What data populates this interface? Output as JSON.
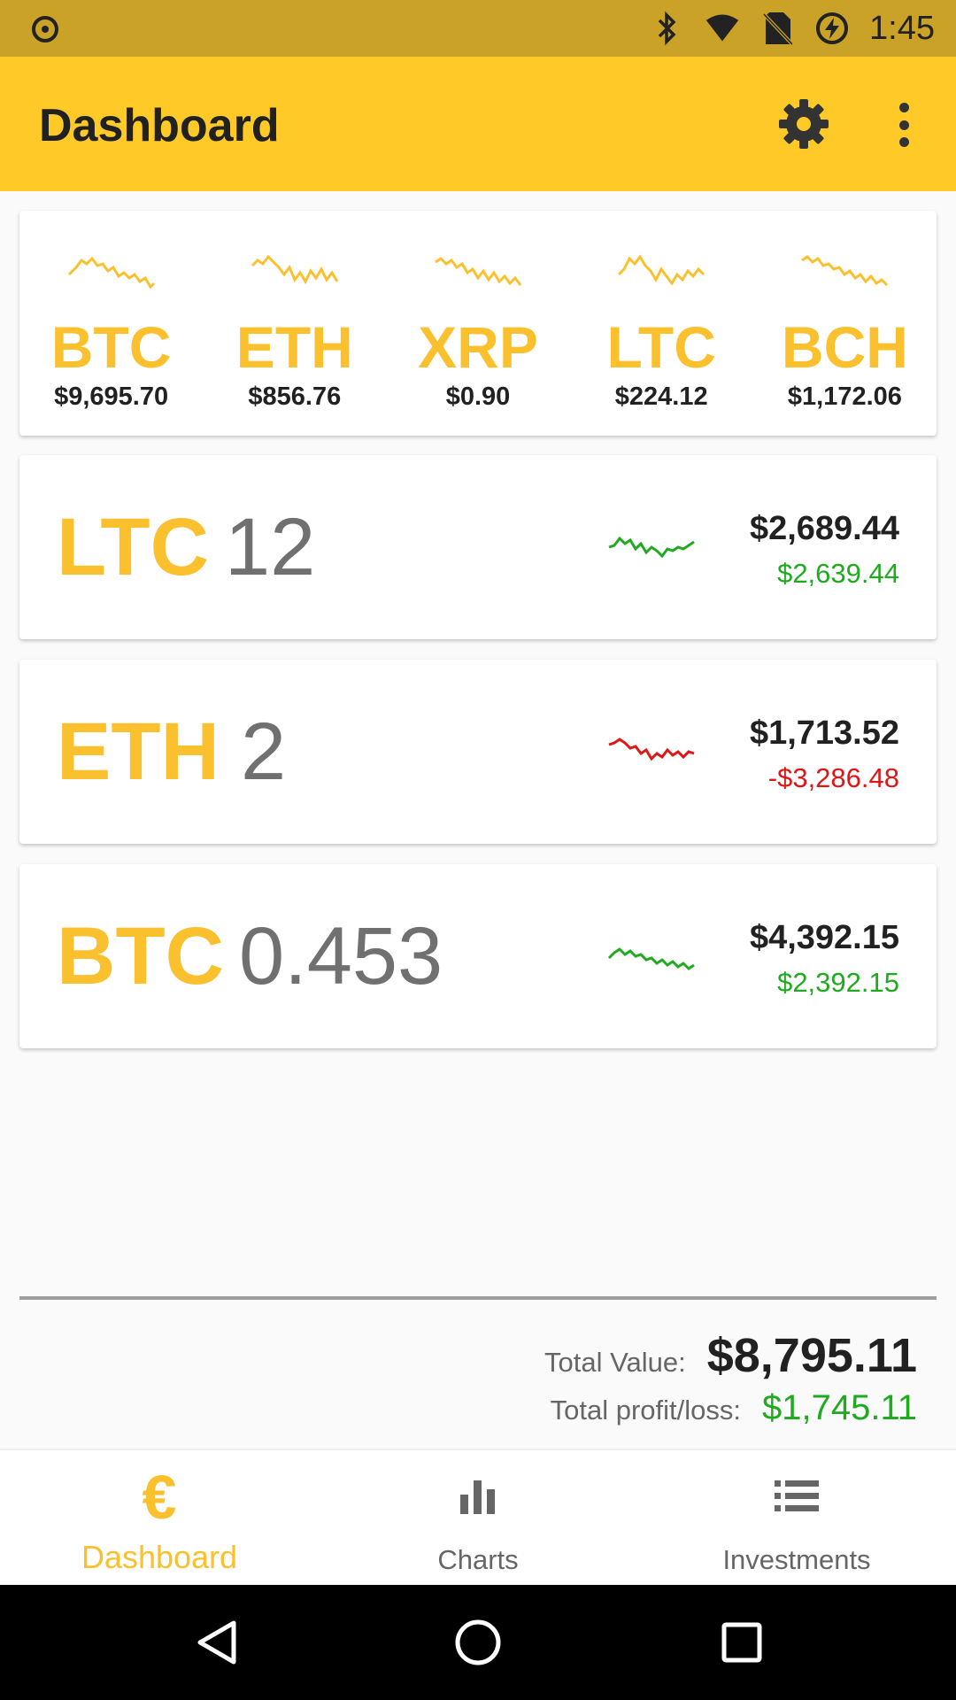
{
  "status_bar": {
    "time": "1:45",
    "icons": [
      "record-icon",
      "bluetooth-icon",
      "wifi-icon",
      "no-sim-icon",
      "battery-charging-icon"
    ]
  },
  "app_bar": {
    "title": "Dashboard",
    "actions": [
      "gear-icon",
      "more-vert-icon"
    ]
  },
  "ticker": [
    {
      "symbol": "BTC",
      "price": "$9,695.70"
    },
    {
      "symbol": "ETH",
      "price": "$856.76"
    },
    {
      "symbol": "XRP",
      "price": "$0.90"
    },
    {
      "symbol": "LTC",
      "price": "$224.12"
    },
    {
      "symbol": "BCH",
      "price": "$1,172.06"
    }
  ],
  "holdings": [
    {
      "symbol": "LTC",
      "quantity": "12",
      "value": "$2,689.44",
      "profit_loss": "$2,639.44",
      "trend": "up"
    },
    {
      "symbol": "ETH",
      "quantity": "2",
      "value": "$1,713.52",
      "profit_loss": "-$3,286.48",
      "trend": "down"
    },
    {
      "symbol": "BTC",
      "quantity": "0.453",
      "value": "$4,392.15",
      "profit_loss": "$2,392.15",
      "trend": "up"
    }
  ],
  "totals": {
    "value_label": "Total Value:",
    "value": "$8,795.11",
    "pl_label": "Total profit/loss:",
    "pl": "$1,745.11"
  },
  "bottom_nav": {
    "items": [
      {
        "label": "Dashboard",
        "icon": "euro-icon",
        "active": true
      },
      {
        "label": "Charts",
        "icon": "bar-chart-icon",
        "active": false
      },
      {
        "label": "Investments",
        "icon": "list-icon",
        "active": false
      }
    ]
  },
  "colors": {
    "primary": "#ffca28",
    "status_bar": "#c9a227",
    "accent": "#fbc02d",
    "positive": "#1faa1f",
    "negative": "#e01515"
  }
}
